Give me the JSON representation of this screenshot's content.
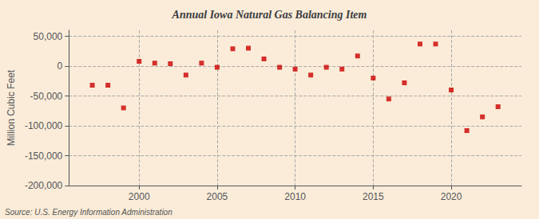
{
  "chart_data": {
    "type": "scatter",
    "title": "Annual Iowa Natural Gas Balancing Item",
    "ylabel": "Million Cubic Feet",
    "annotation": "Source: U.S. Energy Information Administration",
    "x": [
      1997,
      1998,
      1999,
      2000,
      2001,
      2002,
      2003,
      2004,
      2005,
      2006,
      2007,
      2008,
      2009,
      2010,
      2011,
      2012,
      2013,
      2014,
      2015,
      2016,
      2017,
      2018,
      2019,
      2020,
      2021,
      2022,
      2023
    ],
    "values": [
      -32000,
      -32000,
      -70000,
      8000,
      5000,
      4000,
      -15000,
      5000,
      -2000,
      29000,
      30000,
      12000,
      -2000,
      -5000,
      -15000,
      -2000,
      -5000,
      17000,
      -20000,
      -55000,
      -28000,
      37000,
      37000,
      -40000,
      -108000,
      -85000,
      -68000
    ],
    "color": "#cc0000",
    "marker": "square",
    "xlim": [
      1995.5,
      2024.5
    ],
    "xticks": [
      2000,
      2005,
      2010,
      2015,
      2020
    ],
    "ylim": [
      -200000,
      60000
    ],
    "yticks": [
      {
        "value": -200000,
        "label": "-200,000"
      },
      {
        "value": -150000,
        "label": "-150,000"
      },
      {
        "value": -100000,
        "label": "-100,000"
      },
      {
        "value": -50000,
        "label": "-50,000"
      },
      0,
      {
        "value": 50000,
        "label": "50,000"
      }
    ],
    "grid": true
  }
}
